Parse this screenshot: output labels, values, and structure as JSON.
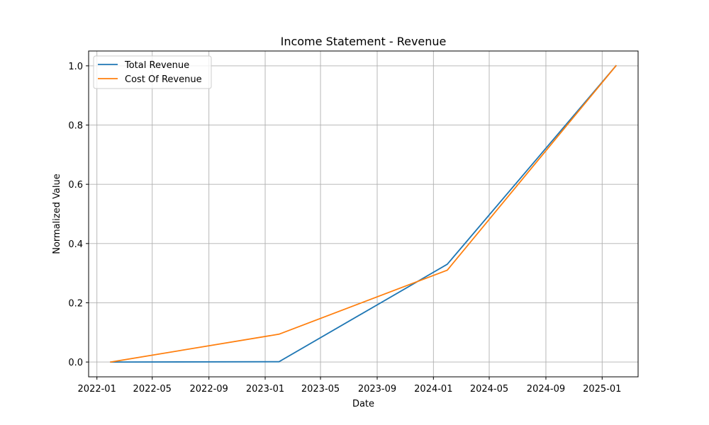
{
  "chart_data": {
    "type": "line",
    "title": "Income Statement - Revenue",
    "xlabel": "Date",
    "ylabel": "Normalized Value",
    "x": [
      "2022-01-31",
      "2023-01-31",
      "2024-01-31",
      "2025-01-31"
    ],
    "series": [
      {
        "name": "Total Revenue",
        "color": "#1f77b4",
        "values": [
          0.0,
          0.001,
          0.33,
          1.0
        ]
      },
      {
        "name": "Cost Of Revenue",
        "color": "#ff7f0e",
        "values": [
          0.0,
          0.094,
          0.31,
          1.0
        ]
      }
    ],
    "xticks": [
      {
        "date": "2022-01-01",
        "label": "2022-01"
      },
      {
        "date": "2022-05-01",
        "label": "2022-05"
      },
      {
        "date": "2022-09-01",
        "label": "2022-09"
      },
      {
        "date": "2023-01-01",
        "label": "2023-01"
      },
      {
        "date": "2023-05-01",
        "label": "2023-05"
      },
      {
        "date": "2023-09-01",
        "label": "2023-09"
      },
      {
        "date": "2024-01-01",
        "label": "2024-01"
      },
      {
        "date": "2024-05-01",
        "label": "2024-05"
      },
      {
        "date": "2024-09-01",
        "label": "2024-09"
      },
      {
        "date": "2025-01-01",
        "label": "2025-01"
      }
    ],
    "yticks": [
      {
        "value": 0.0,
        "label": "0.0"
      },
      {
        "value": 0.2,
        "label": "0.2"
      },
      {
        "value": 0.4,
        "label": "0.4"
      },
      {
        "value": 0.6,
        "label": "0.6"
      },
      {
        "value": 0.8,
        "label": "0.8"
      },
      {
        "value": 1.0,
        "label": "1.0"
      }
    ],
    "xlim": [
      "2021-12-14",
      "2025-03-20"
    ],
    "ylim": [
      -0.05,
      1.05
    ],
    "grid": true,
    "legend_position": "top-left",
    "grid_color": "#b0b0b0",
    "axis_color": "#000000"
  }
}
